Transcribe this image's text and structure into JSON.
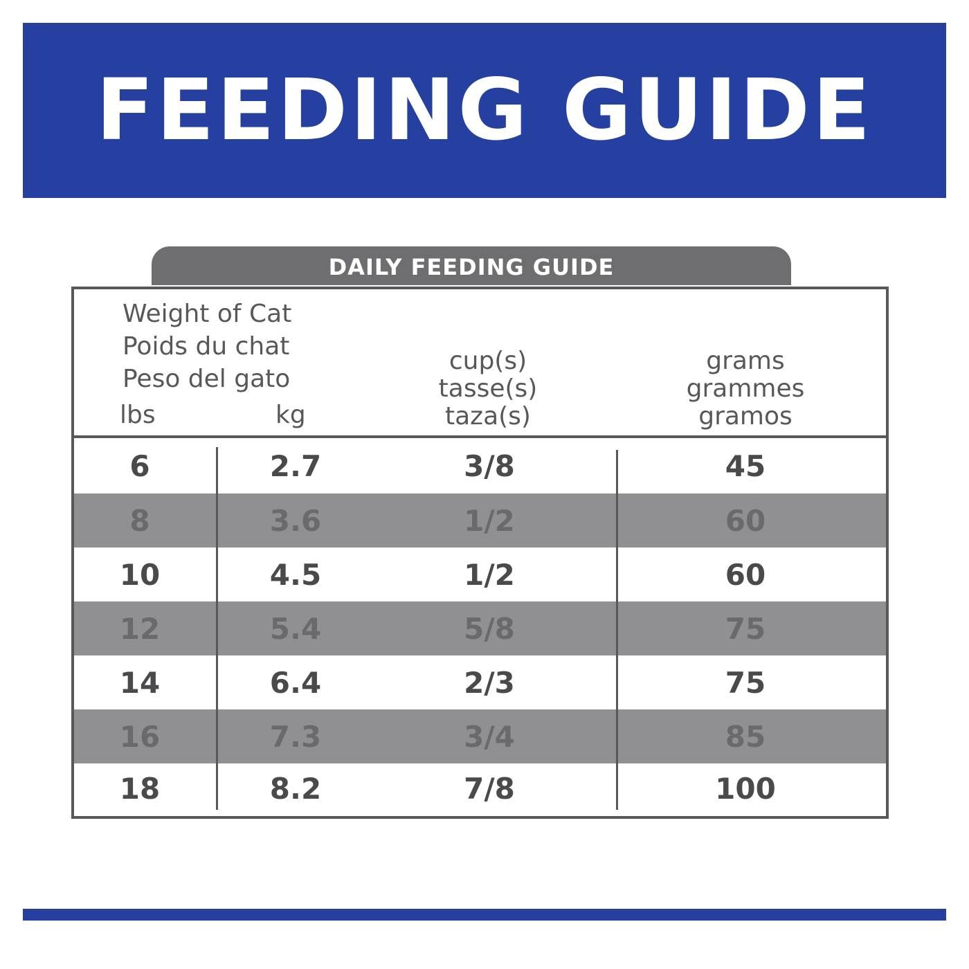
{
  "banner": {
    "title": "FEEDING GUIDE",
    "color": "#2540a0"
  },
  "table": {
    "tab_title": "DAILY FEEDING GUIDE",
    "tab_color": "#6e6e70",
    "header": {
      "weight": {
        "en": "Weight of Cat",
        "fr": "Poids du chat",
        "es": "Peso del gato"
      },
      "units": {
        "lbs": "lbs",
        "kg": "kg"
      },
      "cups": {
        "en": "cup(s)",
        "fr": "tasse(s)",
        "es": "taza(s)"
      },
      "grams": {
        "en": "grams",
        "fr": "grammes",
        "es": "gramos"
      }
    },
    "rows": [
      {
        "lbs": "6",
        "kg": "2.7",
        "cups": "3/8",
        "grams": "45"
      },
      {
        "lbs": "8",
        "kg": "3.6",
        "cups": "1/2",
        "grams": "60"
      },
      {
        "lbs": "10",
        "kg": "4.5",
        "cups": "1/2",
        "grams": "60"
      },
      {
        "lbs": "12",
        "kg": "5.4",
        "cups": "5/8",
        "grams": "75"
      },
      {
        "lbs": "14",
        "kg": "6.4",
        "cups": "2/3",
        "grams": "75"
      },
      {
        "lbs": "16",
        "kg": "7.3",
        "cups": "3/4",
        "grams": "85"
      },
      {
        "lbs": "18",
        "kg": "8.2",
        "cups": "7/8",
        "grams": "100"
      }
    ]
  }
}
